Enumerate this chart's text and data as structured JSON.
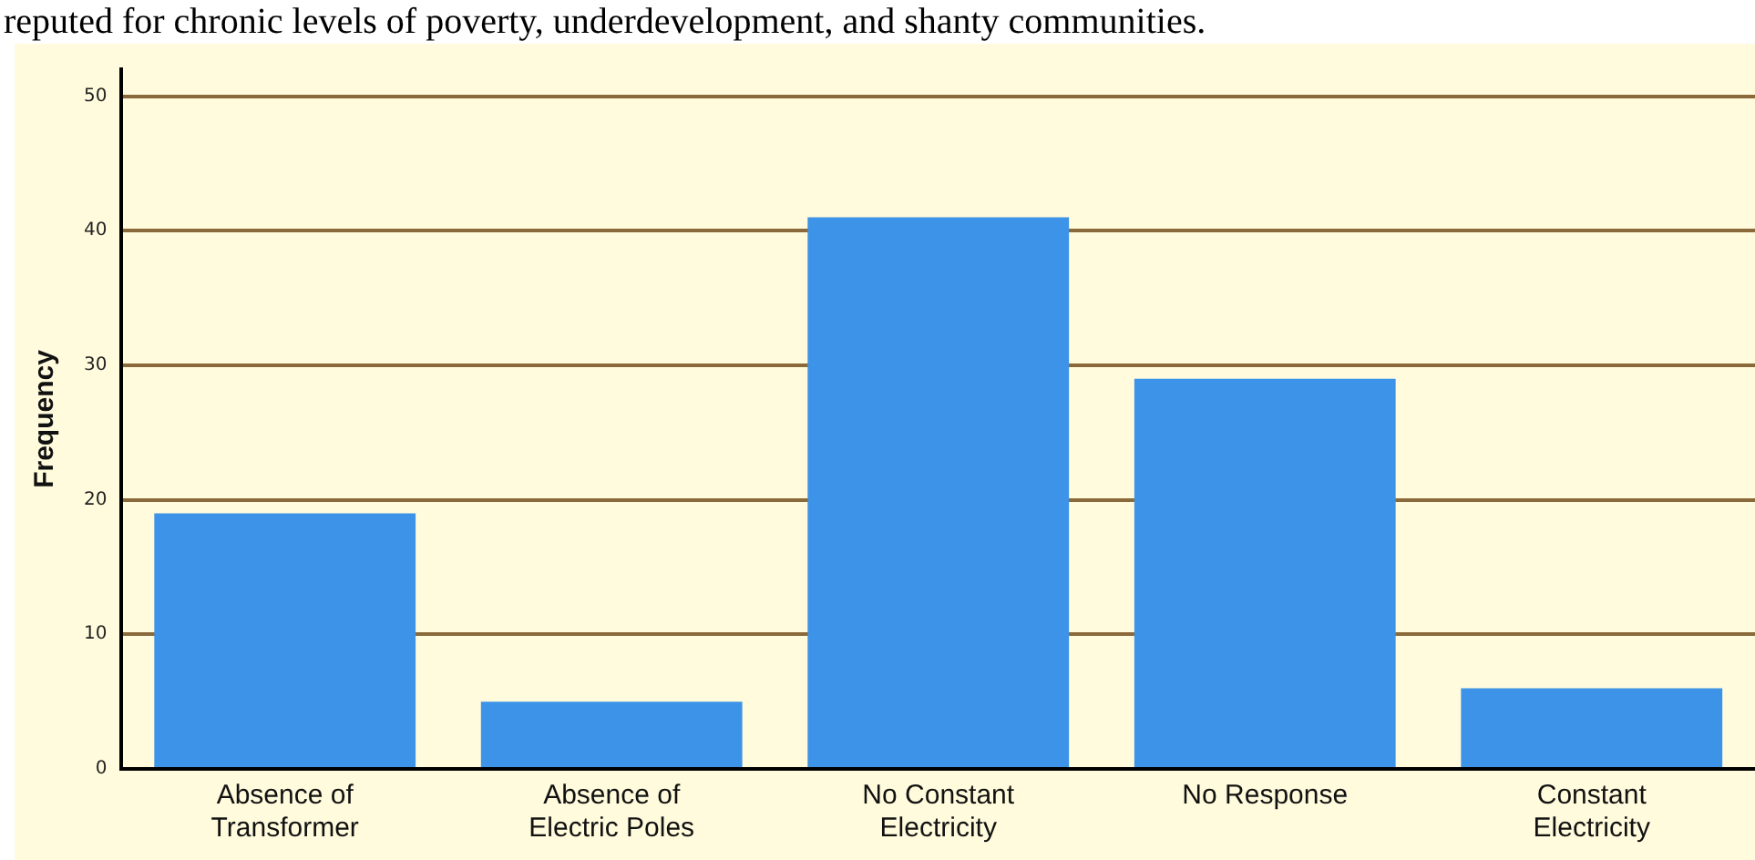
{
  "chart_data": {
    "type": "bar",
    "ylabel": "Frequency",
    "categories": [
      "Absence of Transformer",
      "Absence of Electric Poles",
      "No Constant Electricity",
      "No Response",
      "Constant Electricity"
    ],
    "values": [
      19,
      5,
      41,
      29,
      6
    ],
    "color": "#3d93e8",
    "ylim": [
      0,
      52
    ],
    "yticks": [
      0,
      10,
      20,
      30,
      40,
      50
    ],
    "grid": "y",
    "annotations": [
      "reputed for chronic levels of poverty, underdevelopment, and shanty communities."
    ]
  }
}
